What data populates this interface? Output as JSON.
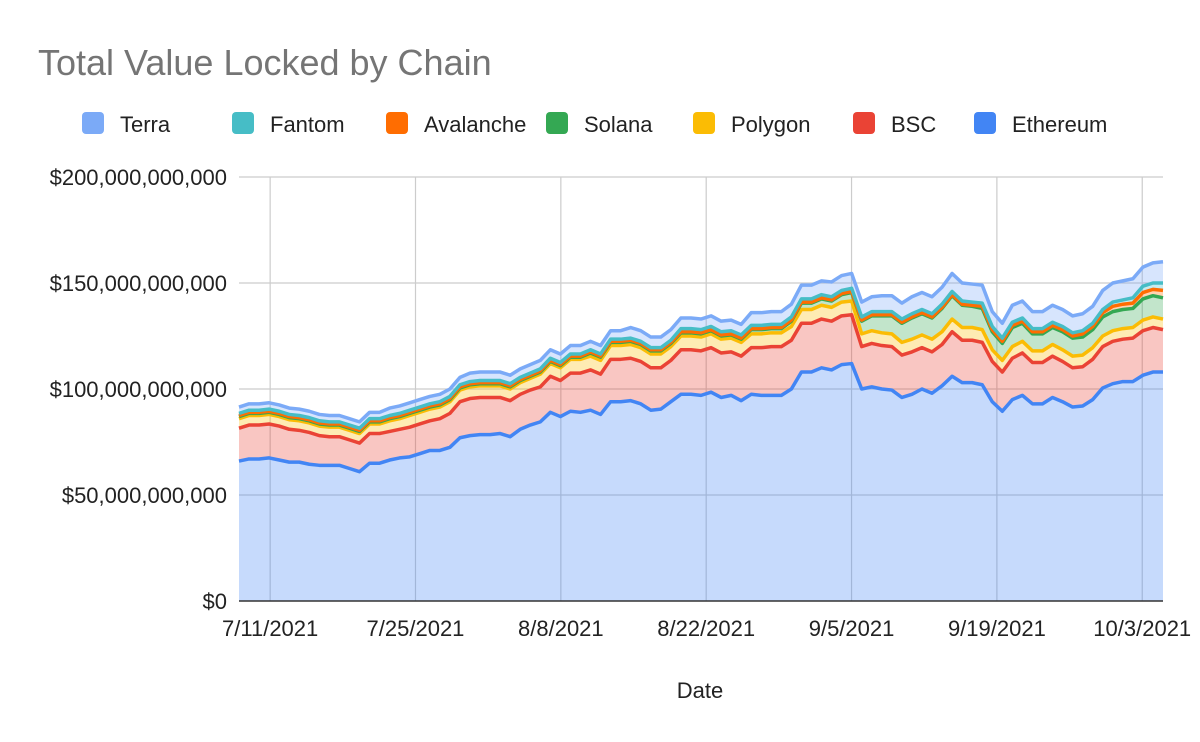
{
  "chart_data": {
    "type": "area",
    "stacked": true,
    "title": "Total Value Locked by Chain",
    "xlabel": "Date",
    "ylabel": "",
    "ylim": [
      0,
      200000000000
    ],
    "yticks": [
      0,
      50000000000,
      100000000000,
      150000000000,
      200000000000
    ],
    "ytick_labels": [
      "$0",
      "$50,000,000,000",
      "$100,000,000,000",
      "$150,000,000,000",
      "$200,000,000,000"
    ],
    "xticks": [
      "7/11/2021",
      "7/25/2021",
      "8/8/2021",
      "8/22/2021",
      "9/5/2021",
      "9/19/2021",
      "10/3/2021"
    ],
    "grid": true,
    "legend_position": "top",
    "x_start": "7/8/2021",
    "x_end": "10/5/2021",
    "series": [
      {
        "name": "Ethereum",
        "color": "#4285f4",
        "values": [
          66,
          67,
          67,
          67.5,
          66.5,
          65.5,
          65.5,
          64.5,
          64,
          64,
          64,
          62.5,
          61,
          65,
          65,
          66.5,
          67.5,
          68,
          69.5,
          71,
          71,
          72.5,
          77,
          78,
          78.5,
          78.5,
          79,
          77.5,
          81,
          83,
          84.5,
          89,
          87,
          89.5,
          89,
          90,
          88,
          94,
          94,
          94.5,
          93,
          90,
          90.5,
          94,
          97.5,
          97.5,
          97,
          98.5,
          96,
          97,
          94.5,
          97.5,
          97,
          97,
          97,
          100,
          108,
          108,
          110,
          109,
          111.5,
          112,
          100,
          101,
          100,
          99.5,
          96,
          97.5,
          100,
          98,
          101.5,
          106,
          103,
          103,
          102,
          94,
          89.5,
          95,
          97,
          93,
          93,
          96,
          94,
          91.5,
          92,
          95,
          100.5,
          102.5,
          103.5,
          103.5,
          106.5,
          108,
          108
        ]
      },
      {
        "name": "BSC",
        "color": "#ea4335",
        "values": [
          15.5,
          16,
          16,
          16,
          16,
          15.5,
          15,
          15,
          14,
          13.5,
          13.5,
          13.5,
          13.5,
          14,
          14,
          13.5,
          13.5,
          14,
          14,
          14,
          15,
          16,
          17,
          17.5,
          17.5,
          17.5,
          17,
          17,
          16.5,
          16.5,
          16.5,
          17,
          17,
          18,
          18.5,
          19,
          19,
          20,
          20,
          20,
          20,
          20,
          19.5,
          19.5,
          21,
          21,
          21,
          21,
          21,
          20.5,
          21,
          22,
          22.5,
          23,
          23,
          23,
          23,
          23,
          23,
          23,
          23,
          23,
          20,
          20.5,
          20.5,
          20.5,
          20,
          20,
          19.5,
          19.5,
          19.5,
          21,
          20,
          20,
          20,
          19,
          18.5,
          19.5,
          20,
          19.5,
          19.5,
          19.5,
          19,
          18.5,
          18.5,
          19,
          19.5,
          20,
          20,
          20.5,
          21,
          21,
          20
        ]
      },
      {
        "name": "Polygon",
        "color": "#fbbc04",
        "values": [
          4.5,
          4.5,
          4.5,
          4.5,
          4.5,
          4.5,
          4.5,
          4.5,
          4.5,
          4.5,
          4.5,
          4.5,
          4.5,
          4.5,
          4.5,
          5,
          5,
          5.5,
          5.5,
          5.5,
          5.5,
          5.5,
          5.5,
          5.5,
          5.5,
          5.5,
          5.5,
          5.5,
          5.5,
          5.5,
          6,
          6,
          6,
          6.5,
          6.5,
          6.5,
          6.5,
          6.5,
          6.5,
          6.5,
          6.5,
          6.5,
          6.5,
          6.5,
          6.5,
          6.5,
          6.5,
          6.5,
          6.5,
          6.5,
          6.5,
          6.5,
          6.5,
          6.5,
          6.5,
          6.5,
          6.5,
          6.5,
          6.5,
          6.5,
          6.5,
          6.5,
          6,
          6,
          6,
          6,
          6,
          6,
          6,
          6,
          6,
          6,
          6,
          6,
          6,
          5.5,
          5.5,
          5.5,
          5.5,
          5.5,
          5.5,
          5.5,
          5.5,
          5.5,
          5.5,
          5.5,
          5,
          5,
          5,
          5,
          5,
          5,
          5
        ]
      },
      {
        "name": "Solana",
        "color": "#34a853",
        "values": [
          1,
          1,
          1,
          1,
          1,
          1,
          1,
          1,
          1,
          1,
          1,
          1,
          1,
          1,
          1,
          1,
          1,
          1,
          1,
          1,
          1,
          1,
          1,
          1,
          1,
          1,
          1,
          1,
          1,
          1,
          1,
          1,
          1,
          1,
          1,
          1.5,
          1.5,
          1.5,
          1.5,
          1.5,
          1.5,
          1.5,
          1.5,
          1.5,
          1.5,
          1.5,
          1.5,
          1.5,
          1.5,
          1.5,
          1.5,
          2,
          2,
          2,
          2,
          2.5,
          3,
          3,
          3,
          3,
          3.5,
          4,
          6,
          7,
          8,
          8.5,
          9,
          10,
          10,
          10,
          11,
          11,
          10.5,
          10,
          10,
          8.5,
          8,
          9,
          8.5,
          8,
          8,
          8,
          8.5,
          8.5,
          8.5,
          8.5,
          9,
          9,
          9,
          9,
          10,
          10,
          10
        ]
      },
      {
        "name": "Avalanche",
        "color": "#ff6d01",
        "values": [
          0.5,
          0.5,
          0.5,
          0.5,
          0.5,
          0.5,
          0.5,
          0.5,
          0.5,
          0.5,
          0.5,
          0.5,
          0.5,
          0.5,
          0.5,
          0.5,
          0.5,
          0.5,
          0.5,
          0.5,
          0.5,
          0.5,
          0.5,
          0.5,
          0.5,
          0.5,
          0.5,
          0.5,
          0.5,
          0.5,
          0.5,
          0.5,
          0.5,
          0.5,
          0.5,
          0.5,
          0.5,
          0.5,
          0.5,
          0.5,
          0.5,
          0.5,
          0.5,
          0.5,
          0.5,
          0.5,
          0.5,
          0.5,
          0.5,
          0.5,
          0.5,
          0.5,
          0.5,
          0.5,
          0.5,
          0.5,
          0.5,
          0.5,
          0.5,
          0.5,
          0.5,
          0.5,
          0.5,
          0.5,
          0.5,
          0.5,
          0.5,
          0.5,
          0.5,
          0.5,
          0.5,
          0.5,
          0.5,
          0.5,
          1,
          1,
          1,
          1,
          1,
          1,
          1,
          1,
          1,
          1,
          1.5,
          1.5,
          2,
          2.5,
          2.5,
          2.5,
          3,
          3,
          3.5
        ]
      },
      {
        "name": "Fantom",
        "color": "#46bdc6",
        "values": [
          1,
          1,
          1,
          1,
          1,
          1,
          1,
          1,
          1,
          1,
          1,
          1,
          1,
          1,
          1,
          1,
          1,
          1,
          1,
          1,
          1,
          1,
          1,
          1,
          1,
          1,
          1,
          1,
          1,
          1,
          1,
          1,
          1,
          1,
          1,
          1,
          1,
          1,
          1,
          1,
          1,
          1,
          1,
          1,
          1.5,
          1.5,
          1.5,
          1.5,
          1.5,
          1.5,
          1.5,
          1.5,
          1.5,
          1.5,
          1.5,
          1.5,
          1.5,
          1.5,
          1.5,
          1.5,
          1.5,
          1.5,
          1.5,
          1.5,
          1.5,
          1.5,
          1.5,
          1.5,
          1.5,
          1.5,
          1.5,
          1.5,
          1.5,
          1.5,
          1.5,
          1.5,
          1.5,
          1.5,
          1.5,
          1.5,
          1.5,
          1.5,
          1.5,
          1.5,
          1.5,
          1.5,
          1.5,
          2,
          2,
          2.5,
          3,
          3,
          3.5
        ]
      },
      {
        "name": "Terra",
        "color": "#7baaf7",
        "values": [
          3,
          3,
          3,
          3,
          3,
          3,
          3,
          3,
          3,
          3,
          3,
          3,
          3,
          3,
          3,
          3.5,
          3.5,
          3.5,
          3.5,
          3.5,
          3.5,
          3.5,
          3.5,
          4,
          4,
          4,
          4,
          4,
          4,
          4,
          4,
          4,
          4,
          4,
          4,
          4,
          4,
          4,
          4,
          5,
          5,
          5,
          5,
          5,
          5,
          5,
          5,
          5,
          5,
          5,
          5,
          6,
          6,
          6,
          6,
          6,
          6.5,
          6.5,
          6.5,
          7,
          7,
          7,
          7,
          7,
          7.5,
          7.5,
          7.5,
          8,
          8,
          8,
          8,
          8.5,
          8.5,
          8.5,
          8.5,
          7,
          7,
          8,
          8,
          8,
          8,
          8,
          8,
          8,
          8,
          8,
          9,
          9,
          9,
          9,
          9,
          9.5,
          10
        ]
      }
    ]
  }
}
